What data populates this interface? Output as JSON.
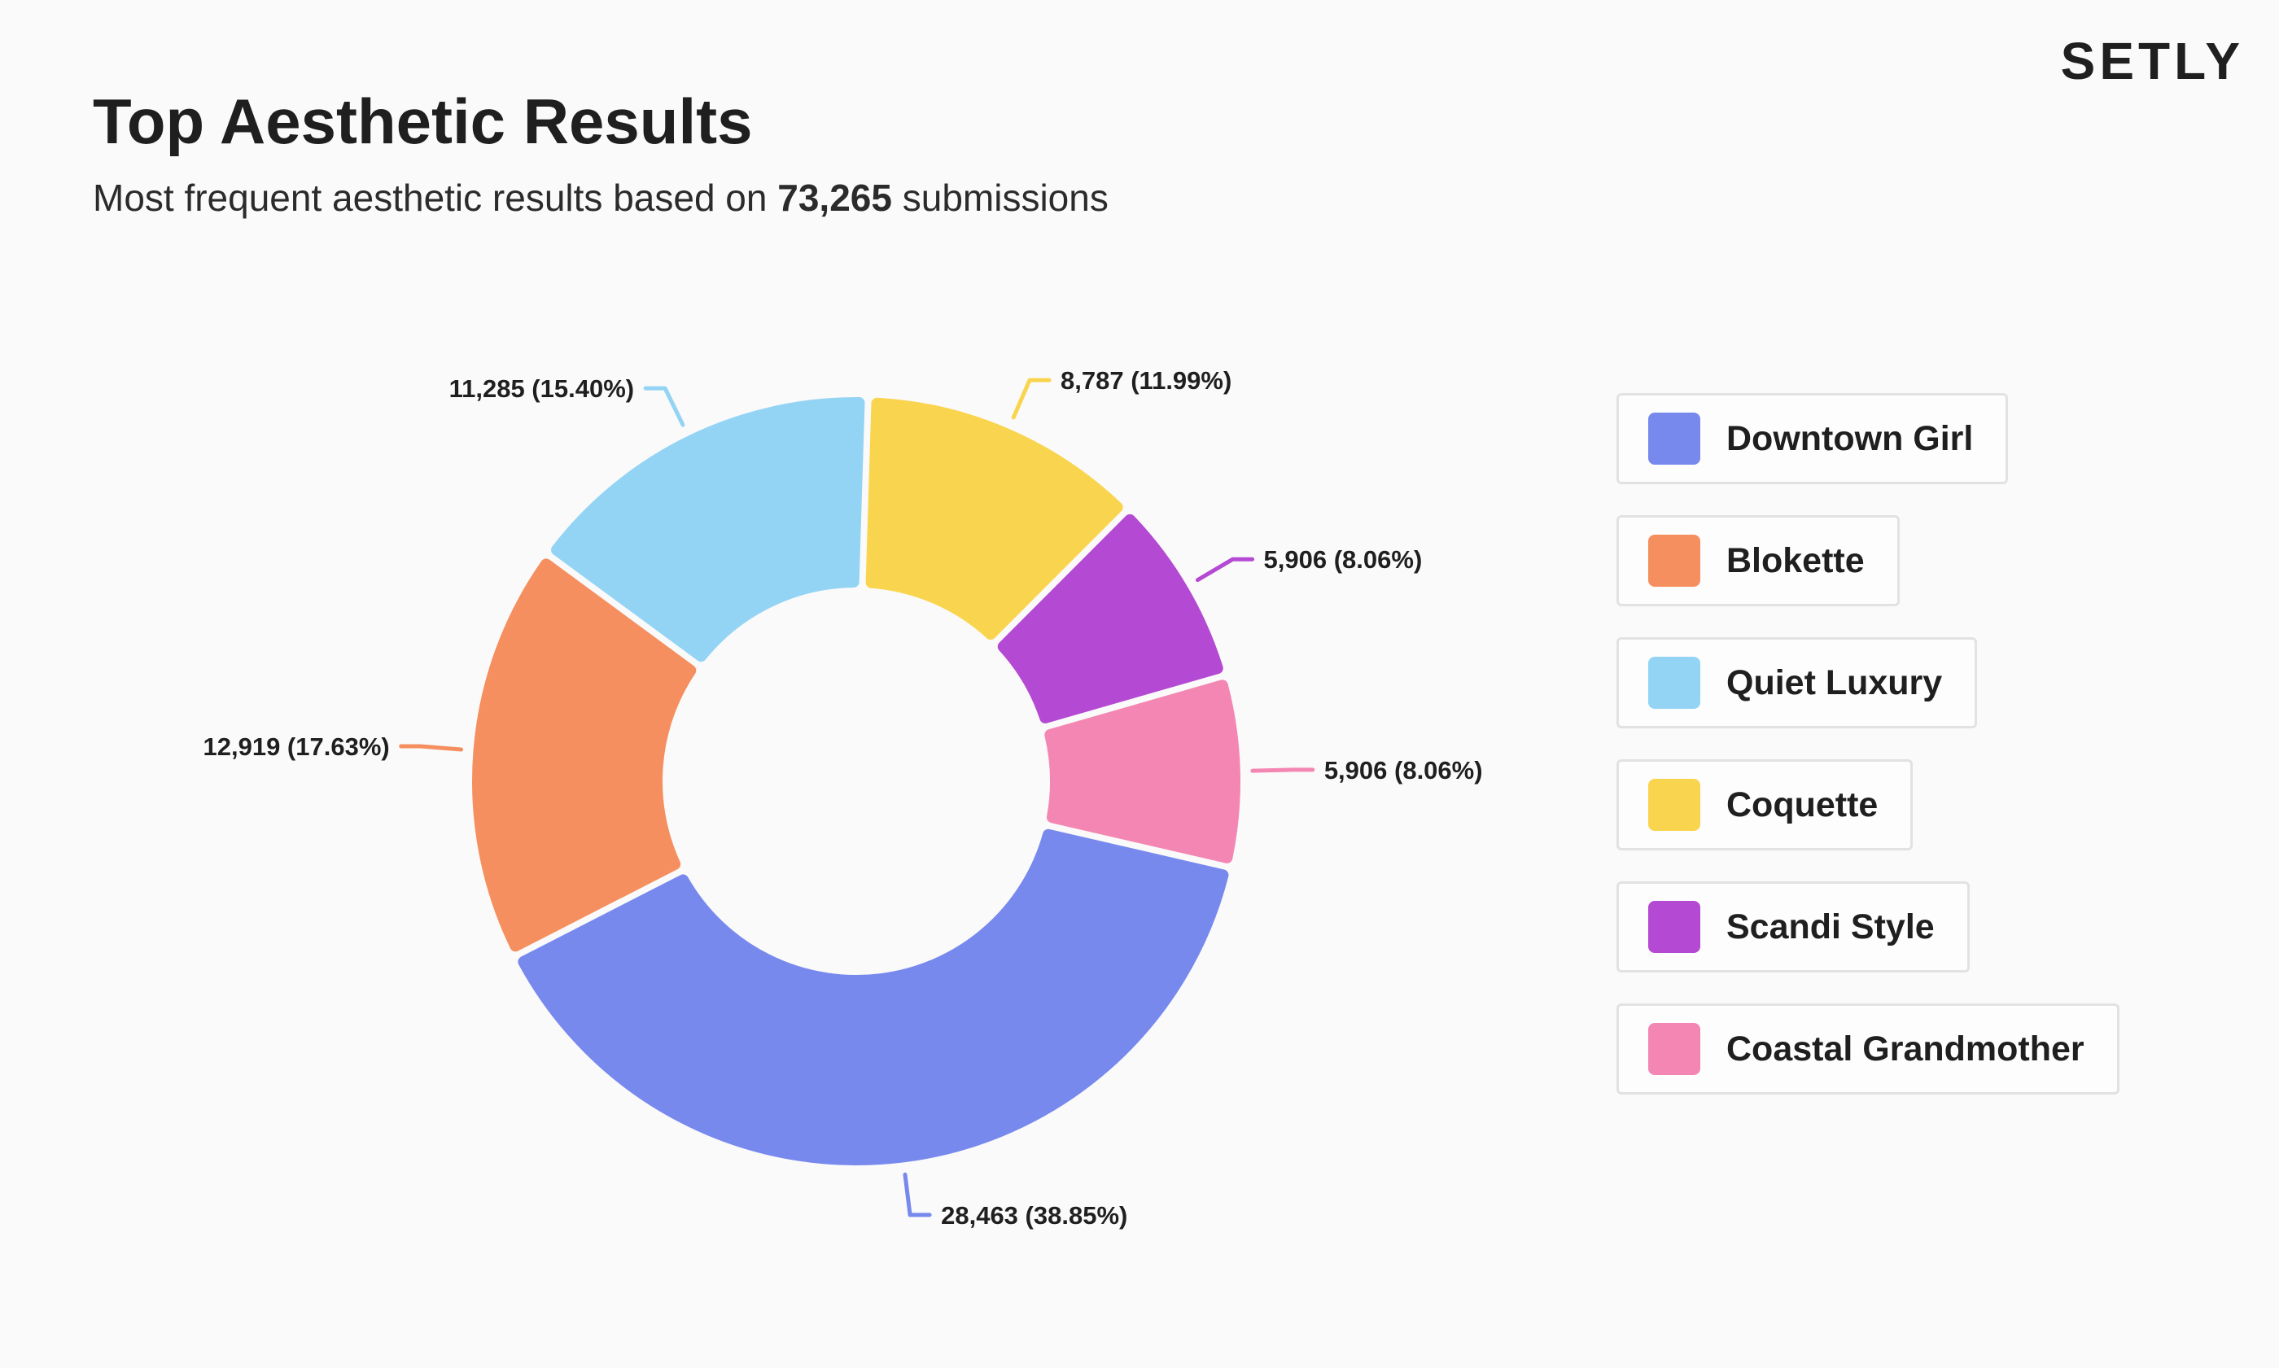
{
  "brand": {
    "logo": "SETLY"
  },
  "header": {
    "title": "Top Aesthetic Results",
    "subtitle_prefix": "Most frequent aesthetic results based on",
    "submissions": "73,265",
    "subtitle_suffix": "submissions"
  },
  "chart_data": {
    "type": "pie",
    "variant": "donut",
    "title": "Top Aesthetic Results",
    "total": 73265,
    "slices": [
      {
        "name": "Downtown Girl",
        "value": 28463,
        "percent": 38.85,
        "label": "28,463 (38.85%)",
        "color": "#7889ed"
      },
      {
        "name": "Blokette",
        "value": 12919,
        "percent": 17.63,
        "label": "12,919 (17.63%)",
        "color": "#f68f5f"
      },
      {
        "name": "Quiet Luxury",
        "value": 11285,
        "percent": 15.4,
        "label": "11,285 (15.40%)",
        "color": "#93d4f4"
      },
      {
        "name": "Coquette",
        "value": 8787,
        "percent": 11.99,
        "label": "8,787 (11.99%)",
        "color": "#f9d54f"
      },
      {
        "name": "Scandi Style",
        "value": 5906,
        "percent": 8.06,
        "label": "5,906 (8.06%)",
        "color": "#b449d3"
      },
      {
        "name": "Coastal Grandmother",
        "value": 5906,
        "percent": 8.06,
        "label": "5,906 (8.06%)",
        "color": "#f486b3"
      }
    ],
    "legend_position": "right"
  }
}
